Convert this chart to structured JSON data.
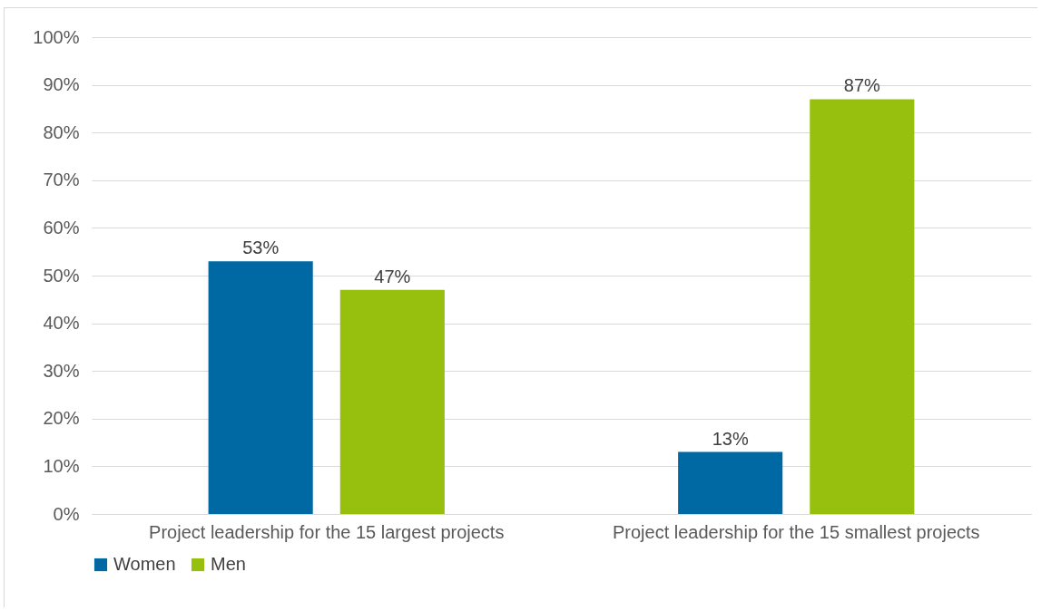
{
  "chart_data": {
    "type": "bar",
    "categories": [
      "Project leadership for the 15 largest projects",
      "Project leadership for the 15 smallest projects"
    ],
    "series": [
      {
        "name": "Women",
        "color": "#0068a3",
        "values": [
          53,
          13
        ],
        "value_labels": [
          "53%",
          "13%"
        ]
      },
      {
        "name": "Men",
        "color": "#97bf0d",
        "values": [
          47,
          87
        ],
        "value_labels": [
          "47%",
          "87%"
        ]
      }
    ],
    "ylim": [
      0,
      100
    ],
    "yticks": [
      {
        "value": 0,
        "label": "0%"
      },
      {
        "value": 10,
        "label": "10%"
      },
      {
        "value": 20,
        "label": "20%"
      },
      {
        "value": 30,
        "label": "30%"
      },
      {
        "value": 40,
        "label": "40%"
      },
      {
        "value": 50,
        "label": "50%"
      },
      {
        "value": 60,
        "label": "60%"
      },
      {
        "value": 70,
        "label": "70%"
      },
      {
        "value": 80,
        "label": "80%"
      },
      {
        "value": 90,
        "label": "90%"
      },
      {
        "value": 100,
        "label": "100%"
      }
    ],
    "grid": "y",
    "legend": "bottom"
  }
}
